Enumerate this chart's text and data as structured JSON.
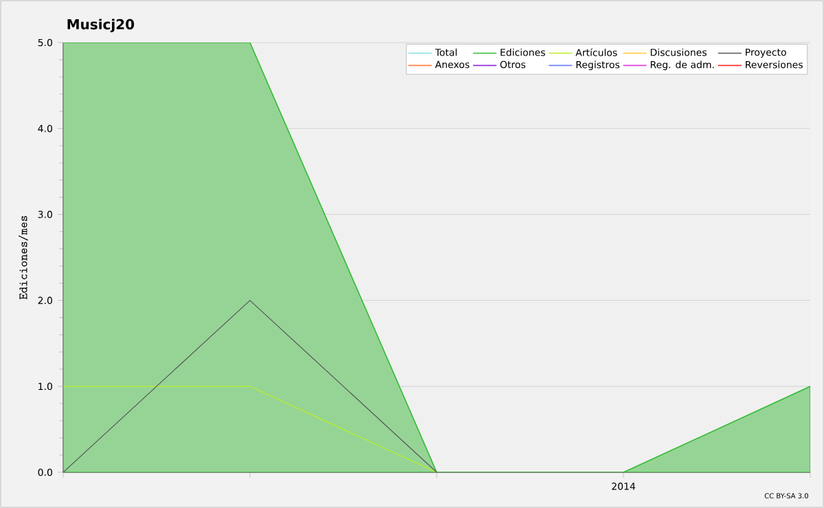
{
  "chart_data": {
    "type": "line",
    "title": "Musicj20",
    "ylabel": "Ediciones/mes",
    "categories": [
      null,
      null,
      null,
      "2014",
      null
    ],
    "ylim": [
      0,
      5
    ],
    "yticks": [
      {
        "value": 0,
        "label": "0.0"
      },
      {
        "value": 1,
        "label": "1.0"
      },
      {
        "value": 2,
        "label": "2.0"
      },
      {
        "value": 3,
        "label": "3.0"
      },
      {
        "value": 4,
        "label": "4.0"
      },
      {
        "value": 5,
        "label": "5.0"
      }
    ],
    "grid": "y",
    "legend": "top right",
    "annotations": [
      "CC BY-SA 3.0"
    ],
    "series": [
      {
        "name": "Total",
        "color": "#80e0e0",
        "values": [
          null,
          null,
          null,
          null,
          null
        ]
      },
      {
        "name": "Ediciones",
        "type": "area",
        "color": "#33bb33",
        "values": [
          5,
          5,
          0,
          0,
          1
        ]
      },
      {
        "name": "Artículos",
        "color": "#b8f020",
        "values": [
          1,
          1,
          0,
          null,
          null
        ]
      },
      {
        "name": "Discusiones",
        "color": "#ffcc33",
        "values": [
          null,
          null,
          null,
          null,
          null
        ]
      },
      {
        "name": "Proyecto",
        "color": "#555555",
        "values": [
          0,
          2,
          0,
          null,
          null
        ]
      },
      {
        "name": "Anexos",
        "color": "#ff8040",
        "values": [
          null,
          null,
          null,
          null,
          null
        ]
      },
      {
        "name": "Otros",
        "color": "#9030e0",
        "values": [
          null,
          null,
          null,
          null,
          null
        ]
      },
      {
        "name": "Registros",
        "color": "#7080ff",
        "values": [
          null,
          null,
          null,
          null,
          null
        ]
      },
      {
        "name": "Reg. de adm.",
        "color": "#e040e0",
        "values": [
          null,
          null,
          null,
          null,
          null
        ]
      },
      {
        "name": "Reversiones",
        "color": "#ff3030",
        "values": [
          null,
          null,
          null,
          null,
          null
        ]
      }
    ]
  }
}
